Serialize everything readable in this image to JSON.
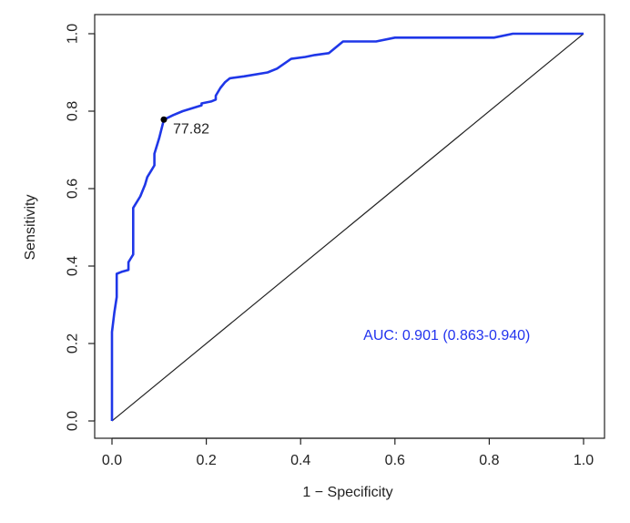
{
  "chart_data": {
    "type": "line",
    "xlabel": "1 − Specificity",
    "ylabel": "Sensitivity",
    "xlim": [
      0.0,
      1.0
    ],
    "ylim": [
      0.0,
      1.0
    ],
    "x_ticks": [
      "0.0",
      "0.2",
      "0.4",
      "0.6",
      "0.8",
      "1.0"
    ],
    "y_ticks": [
      "0.0",
      "0.2",
      "0.4",
      "0.6",
      "0.8",
      "1.0"
    ],
    "grid": false,
    "series": [
      {
        "role": "roc",
        "color": "#1f37e8",
        "x": [
          0.0,
          0.0,
          0.005,
          0.01,
          0.01,
          0.02,
          0.035,
          0.035,
          0.04,
          0.045,
          0.045,
          0.06,
          0.07,
          0.075,
          0.085,
          0.09,
          0.09,
          0.1,
          0.11,
          0.13,
          0.15,
          0.19,
          0.19,
          0.21,
          0.22,
          0.22,
          0.23,
          0.24,
          0.25,
          0.28,
          0.33,
          0.35,
          0.38,
          0.41,
          0.43,
          0.46,
          0.49,
          0.56,
          0.6,
          0.81,
          0.85,
          1.0
        ],
        "y": [
          0.0,
          0.23,
          0.28,
          0.32,
          0.38,
          0.385,
          0.39,
          0.41,
          0.42,
          0.43,
          0.55,
          0.58,
          0.61,
          0.63,
          0.65,
          0.66,
          0.69,
          0.73,
          0.7782,
          0.79,
          0.8,
          0.815,
          0.82,
          0.825,
          0.83,
          0.84,
          0.86,
          0.875,
          0.885,
          0.89,
          0.9,
          0.91,
          0.935,
          0.94,
          0.945,
          0.95,
          0.98,
          0.98,
          0.99,
          0.99,
          1.0,
          1.0
        ]
      },
      {
        "role": "reference",
        "color": "#222222",
        "x": [
          0.0,
          1.0
        ],
        "y": [
          0.0,
          1.0
        ]
      }
    ],
    "cutoff_point": {
      "x": 0.11,
      "y": 0.7782,
      "label": "77.82"
    },
    "annotation": {
      "text": "AUC: 0.901 (0.863-0.940)",
      "color": "#2233ee"
    }
  }
}
